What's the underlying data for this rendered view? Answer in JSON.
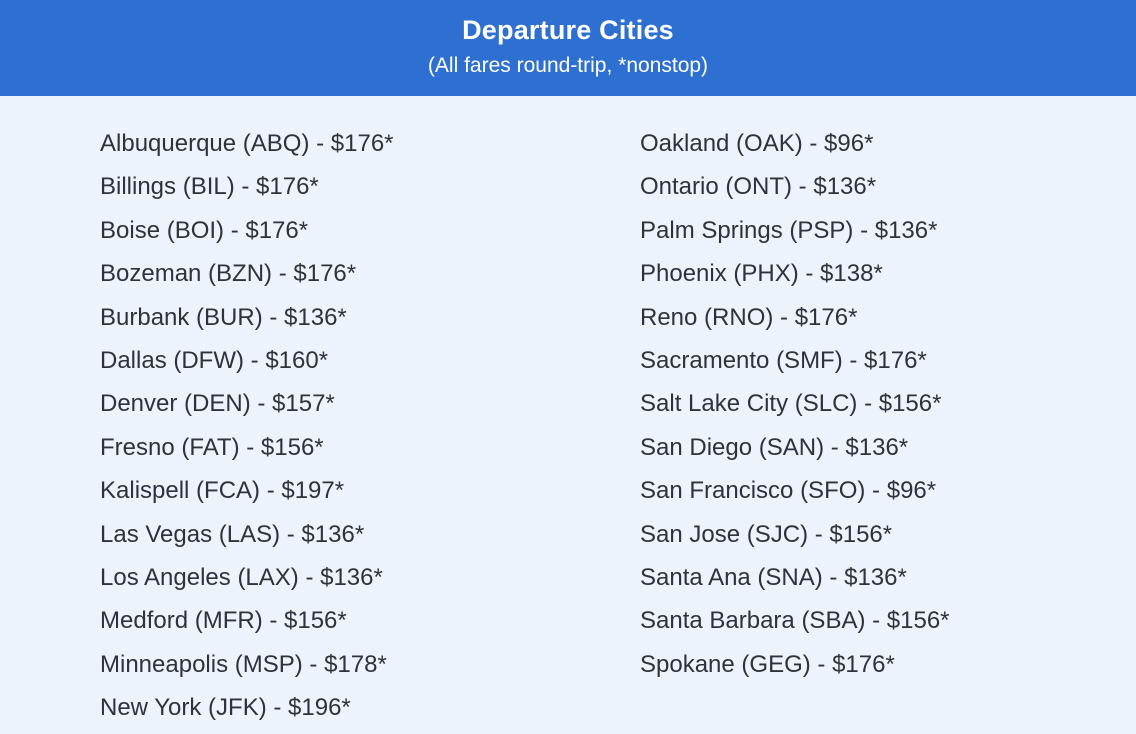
{
  "header": {
    "title": "Departure Cities",
    "subtitle": "(All fares round-trip, *nonstop)"
  },
  "colors": {
    "banner_bg": "#2e70d1",
    "banner_text": "#ffffff",
    "body_bg": "#edf3fc",
    "list_text": "#2e3239"
  },
  "fares": {
    "left_column": [
      {
        "city": "Albuquerque",
        "code": "ABQ",
        "fare": 176,
        "nonstop": true,
        "label": "Albuquerque (ABQ) - $176*"
      },
      {
        "city": "Billings",
        "code": "BIL",
        "fare": 176,
        "nonstop": true,
        "label": "Billings (BIL) - $176*"
      },
      {
        "city": "Boise",
        "code": "BOI",
        "fare": 176,
        "nonstop": true,
        "label": "Boise (BOI) - $176*"
      },
      {
        "city": "Bozeman",
        "code": "BZN",
        "fare": 176,
        "nonstop": true,
        "label": "Bozeman (BZN) - $176*"
      },
      {
        "city": "Burbank",
        "code": "BUR",
        "fare": 136,
        "nonstop": true,
        "label": "Burbank (BUR) - $136*"
      },
      {
        "city": "Dallas",
        "code": "DFW",
        "fare": 160,
        "nonstop": true,
        "label": "Dallas (DFW) - $160*"
      },
      {
        "city": "Denver",
        "code": "DEN",
        "fare": 157,
        "nonstop": true,
        "label": "Denver (DEN) - $157*"
      },
      {
        "city": "Fresno",
        "code": "FAT",
        "fare": 156,
        "nonstop": true,
        "label": "Fresno (FAT) - $156*"
      },
      {
        "city": "Kalispell",
        "code": "FCA",
        "fare": 197,
        "nonstop": true,
        "label": "Kalispell (FCA) - $197*"
      },
      {
        "city": "Las Vegas",
        "code": "LAS",
        "fare": 136,
        "nonstop": true,
        "label": "Las Vegas (LAS) - $136*"
      },
      {
        "city": "Los Angeles",
        "code": "LAX",
        "fare": 136,
        "nonstop": true,
        "label": "Los Angeles (LAX) - $136*"
      },
      {
        "city": "Medford",
        "code": "MFR",
        "fare": 156,
        "nonstop": true,
        "label": "Medford (MFR) - $156*"
      },
      {
        "city": "Minneapolis",
        "code": "MSP",
        "fare": 178,
        "nonstop": true,
        "label": "Minneapolis (MSP) - $178*"
      },
      {
        "city": "New York",
        "code": "JFK",
        "fare": 196,
        "nonstop": true,
        "label": "New York (JFK) - $196*"
      }
    ],
    "right_column": [
      {
        "city": "Oakland",
        "code": "OAK",
        "fare": 96,
        "nonstop": true,
        "label": "Oakland (OAK) - $96*"
      },
      {
        "city": "Ontario",
        "code": "ONT",
        "fare": 136,
        "nonstop": true,
        "label": "Ontario (ONT) - $136*"
      },
      {
        "city": "Palm Springs",
        "code": "PSP",
        "fare": 136,
        "nonstop": true,
        "label": "Palm Springs (PSP) - $136*"
      },
      {
        "city": "Phoenix",
        "code": "PHX",
        "fare": 138,
        "nonstop": true,
        "label": "Phoenix (PHX) - $138*"
      },
      {
        "city": "Reno",
        "code": "RNO",
        "fare": 176,
        "nonstop": true,
        "label": "Reno (RNO) - $176*"
      },
      {
        "city": "Sacramento",
        "code": "SMF",
        "fare": 176,
        "nonstop": true,
        "label": "Sacramento (SMF) - $176*"
      },
      {
        "city": "Salt Lake City",
        "code": "SLC",
        "fare": 156,
        "nonstop": true,
        "label": "Salt Lake City (SLC) - $156*"
      },
      {
        "city": "San Diego",
        "code": "SAN",
        "fare": 136,
        "nonstop": true,
        "label": "San Diego (SAN) - $136*"
      },
      {
        "city": "San Francisco",
        "code": "SFO",
        "fare": 96,
        "nonstop": true,
        "label": "San Francisco (SFO) - $96*"
      },
      {
        "city": "San Jose",
        "code": "SJC",
        "fare": 156,
        "nonstop": true,
        "label": "San Jose (SJC) - $156*"
      },
      {
        "city": "Santa Ana",
        "code": "SNA",
        "fare": 136,
        "nonstop": true,
        "label": "Santa Ana (SNA) - $136*"
      },
      {
        "city": "Santa Barbara",
        "code": "SBA",
        "fare": 156,
        "nonstop": true,
        "label": "Santa Barbara (SBA) - $156*"
      },
      {
        "city": "Spokane",
        "code": "GEG",
        "fare": 176,
        "nonstop": true,
        "label": "Spokane (GEG) - $176*"
      }
    ]
  }
}
